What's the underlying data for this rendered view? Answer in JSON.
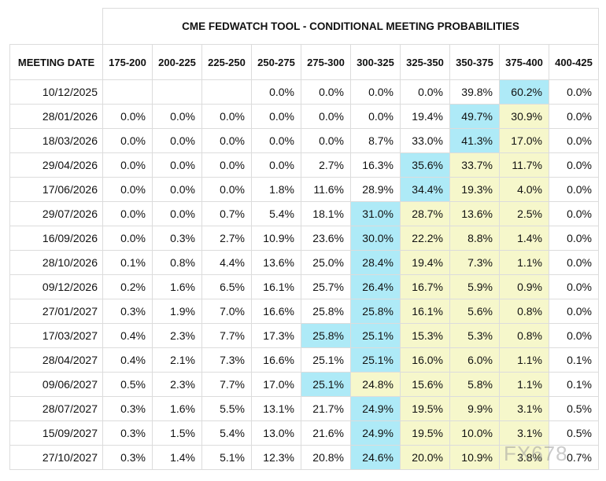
{
  "header": {
    "title": "CME FEDWATCH TOOL - CONDITIONAL MEETING PROBABILITIES"
  },
  "watermark": "FX678",
  "table": {
    "columns": [
      "MEETING DATE",
      "175-200",
      "200-225",
      "225-250",
      "250-275",
      "275-300",
      "300-325",
      "325-350",
      "350-375",
      "375-400",
      "400-425"
    ],
    "rows": [
      {
        "date": "10/12/2025",
        "values": [
          null,
          null,
          null,
          "0.0%",
          "0.0%",
          "0.0%",
          "0.0%",
          "39.8%",
          "60.2%",
          "0.0%"
        ],
        "colors": [
          null,
          null,
          null,
          null,
          null,
          null,
          null,
          null,
          "#aeeaf7",
          null
        ]
      },
      {
        "date": "28/01/2026",
        "values": [
          "0.0%",
          "0.0%",
          "0.0%",
          "0.0%",
          "0.0%",
          "0.0%",
          "19.4%",
          "49.7%",
          "30.9%",
          "0.0%"
        ],
        "colors": [
          null,
          null,
          null,
          null,
          null,
          null,
          null,
          "#aeeaf7",
          "#f6f7cb",
          null
        ]
      },
      {
        "date": "18/03/2026",
        "values": [
          "0.0%",
          "0.0%",
          "0.0%",
          "0.0%",
          "0.0%",
          "8.7%",
          "33.0%",
          "41.3%",
          "17.0%",
          "0.0%"
        ],
        "colors": [
          null,
          null,
          null,
          null,
          null,
          null,
          null,
          "#aeeaf7",
          "#f6f7cb",
          null
        ]
      },
      {
        "date": "29/04/2026",
        "values": [
          "0.0%",
          "0.0%",
          "0.0%",
          "0.0%",
          "2.7%",
          "16.3%",
          "35.6%",
          "33.7%",
          "11.7%",
          "0.0%"
        ],
        "colors": [
          null,
          null,
          null,
          null,
          null,
          null,
          "#aeeaf7",
          "#f6f7cb",
          "#f6f7cb",
          null
        ]
      },
      {
        "date": "17/06/2026",
        "values": [
          "0.0%",
          "0.0%",
          "0.0%",
          "1.8%",
          "11.6%",
          "28.9%",
          "34.4%",
          "19.3%",
          "4.0%",
          "0.0%"
        ],
        "colors": [
          null,
          null,
          null,
          null,
          null,
          null,
          "#aeeaf7",
          "#f6f7cb",
          "#f6f7cb",
          null
        ]
      },
      {
        "date": "29/07/2026",
        "values": [
          "0.0%",
          "0.0%",
          "0.7%",
          "5.4%",
          "18.1%",
          "31.0%",
          "28.7%",
          "13.6%",
          "2.5%",
          "0.0%"
        ],
        "colors": [
          null,
          null,
          null,
          null,
          null,
          "#aeeaf7",
          "#f6f7cb",
          "#f6f7cb",
          "#f6f7cb",
          null
        ]
      },
      {
        "date": "16/09/2026",
        "values": [
          "0.0%",
          "0.3%",
          "2.7%",
          "10.9%",
          "23.6%",
          "30.0%",
          "22.2%",
          "8.8%",
          "1.4%",
          "0.0%"
        ],
        "colors": [
          null,
          null,
          null,
          null,
          null,
          "#aeeaf7",
          "#f6f7cb",
          "#f6f7cb",
          "#f6f7cb",
          null
        ]
      },
      {
        "date": "28/10/2026",
        "values": [
          "0.1%",
          "0.8%",
          "4.4%",
          "13.6%",
          "25.0%",
          "28.4%",
          "19.4%",
          "7.3%",
          "1.1%",
          "0.0%"
        ],
        "colors": [
          null,
          null,
          null,
          null,
          null,
          "#aeeaf7",
          "#f6f7cb",
          "#f6f7cb",
          "#f6f7cb",
          null
        ]
      },
      {
        "date": "09/12/2026",
        "values": [
          "0.2%",
          "1.6%",
          "6.5%",
          "16.1%",
          "25.7%",
          "26.4%",
          "16.7%",
          "5.9%",
          "0.9%",
          "0.0%"
        ],
        "colors": [
          null,
          null,
          null,
          null,
          null,
          "#aeeaf7",
          "#f6f7cb",
          "#f6f7cb",
          "#f6f7cb",
          null
        ]
      },
      {
        "date": "27/01/2027",
        "values": [
          "0.3%",
          "1.9%",
          "7.0%",
          "16.6%",
          "25.8%",
          "25.8%",
          "16.1%",
          "5.6%",
          "0.8%",
          "0.0%"
        ],
        "colors": [
          null,
          null,
          null,
          null,
          null,
          "#aeeaf7",
          "#f6f7cb",
          "#f6f7cb",
          "#f6f7cb",
          null
        ]
      },
      {
        "date": "17/03/2027",
        "values": [
          "0.4%",
          "2.3%",
          "7.7%",
          "17.3%",
          "25.8%",
          "25.1%",
          "15.3%",
          "5.3%",
          "0.8%",
          "0.0%"
        ],
        "colors": [
          null,
          null,
          null,
          null,
          "#aeeaf7",
          "#aeeaf7",
          "#f6f7cb",
          "#f6f7cb",
          "#f6f7cb",
          null
        ]
      },
      {
        "date": "28/04/2027",
        "values": [
          "0.4%",
          "2.1%",
          "7.3%",
          "16.6%",
          "25.1%",
          "25.1%",
          "16.0%",
          "6.0%",
          "1.1%",
          "0.1%"
        ],
        "colors": [
          null,
          null,
          null,
          null,
          null,
          "#aeeaf7",
          "#f6f7cb",
          "#f6f7cb",
          "#f6f7cb",
          null
        ]
      },
      {
        "date": "09/06/2027",
        "values": [
          "0.5%",
          "2.3%",
          "7.7%",
          "17.0%",
          "25.1%",
          "24.8%",
          "15.6%",
          "5.8%",
          "1.1%",
          "0.1%"
        ],
        "colors": [
          null,
          null,
          null,
          null,
          "#aeeaf7",
          "#f6f7cb",
          "#f6f7cb",
          "#f6f7cb",
          "#f6f7cb",
          null
        ]
      },
      {
        "date": "28/07/2027",
        "values": [
          "0.3%",
          "1.6%",
          "5.5%",
          "13.1%",
          "21.7%",
          "24.9%",
          "19.5%",
          "9.9%",
          "3.1%",
          "0.5%"
        ],
        "colors": [
          null,
          null,
          null,
          null,
          null,
          "#aeeaf7",
          "#f6f7cb",
          "#f6f7cb",
          "#f6f7cb",
          null
        ]
      },
      {
        "date": "15/09/2027",
        "values": [
          "0.3%",
          "1.5%",
          "5.4%",
          "13.0%",
          "21.6%",
          "24.9%",
          "19.5%",
          "10.0%",
          "3.1%",
          "0.5%"
        ],
        "colors": [
          null,
          null,
          null,
          null,
          null,
          "#aeeaf7",
          "#f6f7cb",
          "#f6f7cb",
          "#f6f7cb",
          null
        ]
      },
      {
        "date": "27/10/2027",
        "values": [
          "0.3%",
          "1.4%",
          "5.1%",
          "12.3%",
          "20.8%",
          "24.6%",
          "20.0%",
          "10.9%",
          "3.8%",
          "0.7%"
        ],
        "colors": [
          null,
          null,
          null,
          null,
          null,
          "#aeeaf7",
          "#f6f7cb",
          "#f6f7cb",
          "#f6f7cb",
          null
        ]
      }
    ]
  }
}
